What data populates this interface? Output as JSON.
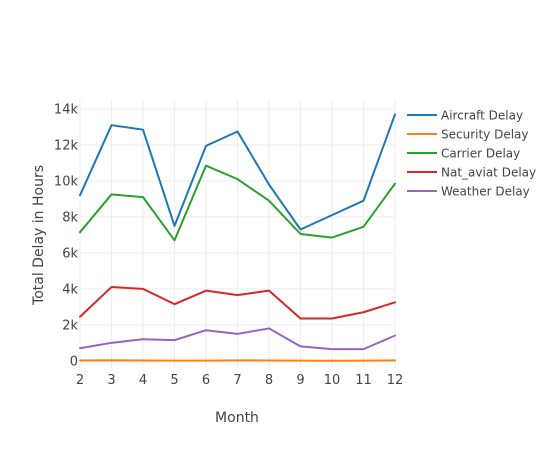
{
  "chart_data": {
    "type": "line",
    "title": "",
    "xlabel": "Month",
    "ylabel": "Total Delay in Hours",
    "x": [
      2,
      3,
      4,
      5,
      6,
      7,
      8,
      9,
      10,
      11,
      12
    ],
    "xlim": [
      2,
      12
    ],
    "ylim": [
      -400,
      14500
    ],
    "x_ticks": [
      "2",
      "3",
      "4",
      "5",
      "6",
      "7",
      "8",
      "9",
      "10",
      "11",
      "12"
    ],
    "y_ticks": [
      {
        "value": 0,
        "label": "0"
      },
      {
        "value": 2000,
        "label": "2k"
      },
      {
        "value": 4000,
        "label": "4k"
      },
      {
        "value": 6000,
        "label": "6k"
      },
      {
        "value": 8000,
        "label": "8k"
      },
      {
        "value": 10000,
        "label": "10k"
      },
      {
        "value": 12000,
        "label": "12k"
      },
      {
        "value": 14000,
        "label": "14k"
      }
    ],
    "grid": true,
    "legend_position": "top-right",
    "series": [
      {
        "name": "Aircraft Delay",
        "color": "#1f77b4",
        "values": [
          9200,
          13100,
          12850,
          7500,
          11950,
          12750,
          9800,
          7300,
          8100,
          8900,
          13700
        ]
      },
      {
        "name": "Security Delay",
        "color": "#ff7f0e",
        "values": [
          20,
          30,
          15,
          10,
          10,
          25,
          20,
          10,
          5,
          10,
          25
        ]
      },
      {
        "name": "Carrier Delay",
        "color": "#2ca02c",
        "values": [
          7150,
          9250,
          9100,
          6700,
          10850,
          10100,
          8900,
          7050,
          6850,
          7450,
          9850
        ]
      },
      {
        "name": "Nat_aviat Delay",
        "color": "#d62728",
        "values": [
          2450,
          4100,
          4000,
          3150,
          3900,
          3650,
          3900,
          2350,
          2350,
          2700,
          3250
        ]
      },
      {
        "name": "Weather Delay",
        "color": "#9467bd",
        "values": [
          700,
          1000,
          1200,
          1150,
          1700,
          1500,
          1800,
          800,
          650,
          650,
          1400
        ]
      }
    ]
  }
}
